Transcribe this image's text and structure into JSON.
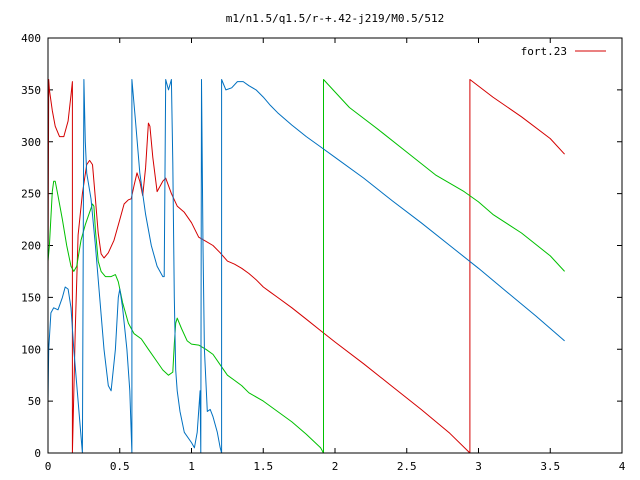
{
  "chart_data": {
    "type": "line",
    "title": "m1/n1.5/q1.5/r-+.42-j219/M0.5/512",
    "xlabel": "",
    "ylabel": "",
    "xlim": [
      0,
      4
    ],
    "ylim": [
      0,
      400
    ],
    "x_ticks": [
      0,
      0.5,
      1,
      1.5,
      2,
      2.5,
      3,
      3.5,
      4
    ],
    "x_tick_labels": [
      "0",
      "0.5",
      "1",
      "1.5",
      "2",
      "2.5",
      "3",
      "3.5",
      "4"
    ],
    "y_ticks": [
      0,
      50,
      100,
      150,
      200,
      250,
      300,
      350,
      400
    ],
    "y_tick_labels": [
      "0",
      "50",
      "100",
      "150",
      "200",
      "250",
      "300",
      "350",
      "400"
    ],
    "grid": false,
    "legend": {
      "position": "top-right",
      "entries": [
        {
          "label": "fort.23",
          "color": "#d40000"
        }
      ]
    },
    "series": [
      {
        "name": "fort.23",
        "color": "#d40000",
        "points": [
          [
            0.0,
            160
          ],
          [
            0.005,
            360
          ],
          [
            0.01,
            350
          ],
          [
            0.03,
            330
          ],
          [
            0.05,
            315
          ],
          [
            0.08,
            305
          ],
          [
            0.11,
            305
          ],
          [
            0.14,
            320
          ],
          [
            0.16,
            345
          ],
          [
            0.17,
            358
          ],
          [
            0.17,
            0
          ],
          [
            0.19,
            120
          ],
          [
            0.21,
            210
          ],
          [
            0.24,
            250
          ],
          [
            0.27,
            278
          ],
          [
            0.29,
            282
          ],
          [
            0.31,
            278
          ],
          [
            0.33,
            245
          ],
          [
            0.35,
            212
          ],
          [
            0.37,
            192
          ],
          [
            0.39,
            188
          ],
          [
            0.42,
            193
          ],
          [
            0.46,
            205
          ],
          [
            0.5,
            225
          ],
          [
            0.53,
            240
          ],
          [
            0.56,
            244
          ],
          [
            0.58,
            245
          ],
          [
            0.6,
            258
          ],
          [
            0.62,
            270
          ],
          [
            0.64,
            262
          ],
          [
            0.66,
            248
          ],
          [
            0.68,
            275
          ],
          [
            0.7,
            318
          ],
          [
            0.71,
            315
          ],
          [
            0.73,
            285
          ],
          [
            0.76,
            252
          ],
          [
            0.8,
            262
          ],
          [
            0.82,
            265
          ],
          [
            0.86,
            250
          ],
          [
            0.9,
            238
          ],
          [
            0.95,
            232
          ],
          [
            1.0,
            222
          ],
          [
            1.05,
            208
          ],
          [
            1.1,
            204
          ],
          [
            1.15,
            200
          ],
          [
            1.2,
            193
          ],
          [
            1.25,
            185
          ],
          [
            1.3,
            182
          ],
          [
            1.35,
            178
          ],
          [
            1.4,
            173
          ],
          [
            1.45,
            167
          ],
          [
            1.5,
            160
          ],
          [
            1.55,
            155
          ],
          [
            1.6,
            150
          ],
          [
            1.7,
            140
          ],
          [
            1.8,
            129
          ],
          [
            1.9,
            118
          ],
          [
            2.0,
            107
          ],
          [
            2.2,
            86
          ],
          [
            2.4,
            64
          ],
          [
            2.6,
            42
          ],
          [
            2.8,
            19
          ],
          [
            2.94,
            0
          ],
          [
            2.94,
            360
          ],
          [
            3.1,
            343
          ],
          [
            3.3,
            324
          ],
          [
            3.5,
            303
          ],
          [
            3.6,
            288
          ]
        ]
      },
      {
        "color": "#00c000",
        "points": [
          [
            0.0,
            185
          ],
          [
            0.01,
            200
          ],
          [
            0.03,
            252
          ],
          [
            0.04,
            262
          ],
          [
            0.05,
            262
          ],
          [
            0.07,
            248
          ],
          [
            0.1,
            225
          ],
          [
            0.13,
            200
          ],
          [
            0.16,
            180
          ],
          [
            0.18,
            175
          ],
          [
            0.2,
            180
          ],
          [
            0.23,
            205
          ],
          [
            0.26,
            220
          ],
          [
            0.29,
            232
          ],
          [
            0.31,
            240
          ],
          [
            0.32,
            238
          ],
          [
            0.33,
            215
          ],
          [
            0.35,
            185
          ],
          [
            0.37,
            175
          ],
          [
            0.4,
            170
          ],
          [
            0.44,
            170
          ],
          [
            0.47,
            172
          ],
          [
            0.49,
            165
          ],
          [
            0.52,
            145
          ],
          [
            0.56,
            125
          ],
          [
            0.6,
            115
          ],
          [
            0.65,
            110
          ],
          [
            0.7,
            100
          ],
          [
            0.75,
            90
          ],
          [
            0.8,
            80
          ],
          [
            0.84,
            75
          ],
          [
            0.87,
            78
          ],
          [
            0.88,
            105
          ],
          [
            0.89,
            125
          ],
          [
            0.9,
            130
          ],
          [
            0.93,
            120
          ],
          [
            0.97,
            108
          ],
          [
            1.0,
            105
          ],
          [
            1.05,
            104
          ],
          [
            1.1,
            100
          ],
          [
            1.15,
            95
          ],
          [
            1.2,
            85
          ],
          [
            1.25,
            75
          ],
          [
            1.3,
            70
          ],
          [
            1.35,
            65
          ],
          [
            1.4,
            58
          ],
          [
            1.5,
            50
          ],
          [
            1.6,
            40
          ],
          [
            1.7,
            30
          ],
          [
            1.8,
            18
          ],
          [
            1.9,
            5
          ],
          [
            1.92,
            0
          ],
          [
            1.92,
            360
          ],
          [
            2.1,
            333
          ],
          [
            2.3,
            312
          ],
          [
            2.5,
            290
          ],
          [
            2.7,
            268
          ],
          [
            2.9,
            252
          ],
          [
            3.0,
            242
          ],
          [
            3.1,
            230
          ],
          [
            3.3,
            212
          ],
          [
            3.5,
            190
          ],
          [
            3.6,
            175
          ]
        ]
      },
      {
        "color": "#0070c0",
        "points": [
          [
            0.0,
            50
          ],
          [
            0.005,
            100
          ],
          [
            0.02,
            135
          ],
          [
            0.04,
            140
          ],
          [
            0.07,
            138
          ],
          [
            0.1,
            150
          ],
          [
            0.12,
            160
          ],
          [
            0.14,
            158
          ],
          [
            0.16,
            140
          ],
          [
            0.18,
            100
          ],
          [
            0.21,
            50
          ],
          [
            0.24,
            0
          ],
          [
            0.25,
            360
          ],
          [
            0.26,
            300
          ],
          [
            0.27,
            270
          ],
          [
            0.3,
            245
          ],
          [
            0.33,
            200
          ],
          [
            0.36,
            150
          ],
          [
            0.39,
            100
          ],
          [
            0.42,
            65
          ],
          [
            0.44,
            60
          ],
          [
            0.47,
            100
          ],
          [
            0.49,
            150
          ],
          [
            0.5,
            158
          ],
          [
            0.52,
            140
          ],
          [
            0.55,
            100
          ],
          [
            0.57,
            60
          ],
          [
            0.58,
            20
          ],
          [
            0.585,
            0
          ],
          [
            0.585,
            360
          ],
          [
            0.61,
            320
          ],
          [
            0.64,
            270
          ],
          [
            0.68,
            230
          ],
          [
            0.72,
            200
          ],
          [
            0.76,
            180
          ],
          [
            0.8,
            170
          ],
          [
            0.81,
            170
          ],
          [
            0.82,
            360
          ],
          [
            0.84,
            350
          ],
          [
            0.86,
            360
          ],
          [
            0.87,
            280
          ],
          [
            0.88,
            150
          ],
          [
            0.89,
            80
          ],
          [
            0.9,
            60
          ],
          [
            0.92,
            40
          ],
          [
            0.95,
            20
          ],
          [
            1.0,
            10
          ],
          [
            1.02,
            5
          ],
          [
            1.04,
            20
          ],
          [
            1.06,
            60
          ],
          [
            1.065,
            0
          ],
          [
            1.07,
            360
          ],
          [
            1.08,
            200
          ],
          [
            1.09,
            100
          ],
          [
            1.11,
            40
          ],
          [
            1.13,
            42
          ],
          [
            1.15,
            35
          ],
          [
            1.18,
            20
          ],
          [
            1.2,
            5
          ],
          [
            1.21,
            0
          ],
          [
            1.21,
            360
          ],
          [
            1.24,
            350
          ],
          [
            1.28,
            352
          ],
          [
            1.32,
            358
          ],
          [
            1.36,
            358
          ],
          [
            1.4,
            354
          ],
          [
            1.45,
            350
          ],
          [
            1.5,
            343
          ],
          [
            1.55,
            335
          ],
          [
            1.6,
            328
          ],
          [
            1.7,
            316
          ],
          [
            1.8,
            305
          ],
          [
            1.9,
            295
          ],
          [
            2.0,
            285
          ],
          [
            2.2,
            265
          ],
          [
            2.4,
            243
          ],
          [
            2.6,
            222
          ],
          [
            2.8,
            200
          ],
          [
            3.0,
            178
          ],
          [
            3.2,
            155
          ],
          [
            3.4,
            132
          ],
          [
            3.6,
            108
          ]
        ]
      }
    ]
  }
}
